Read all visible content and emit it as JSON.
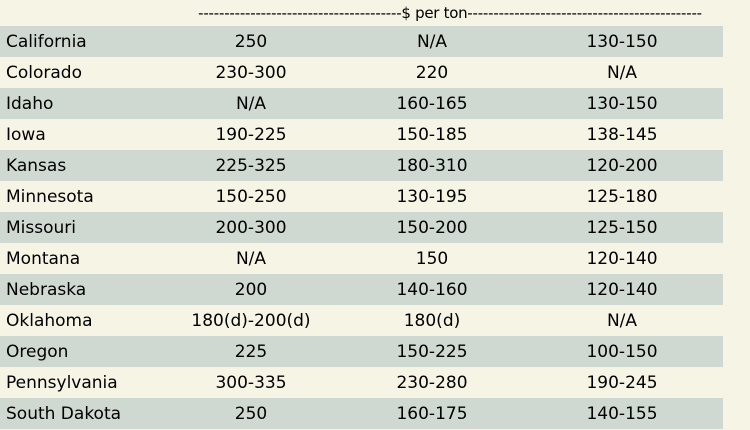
{
  "header": {
    "label": "$ per ton",
    "dashes_left": "---------------------------------------",
    "dashes_right": "---------------------------------------------"
  },
  "colors": {
    "shaded_row": "#cfd9d1",
    "plain_row": "#f6f4e4"
  },
  "rows": [
    {
      "state": "California",
      "c1": "250",
      "c2": "N/A",
      "c3": "130-150"
    },
    {
      "state": "Colorado",
      "c1": "230-300",
      "c2": "220",
      "c3": "N/A"
    },
    {
      "state": "Idaho",
      "c1": "N/A",
      "c2": "160-165",
      "c3": "130-150"
    },
    {
      "state": "Iowa",
      "c1": "190-225",
      "c2": "150-185",
      "c3": "138-145"
    },
    {
      "state": "Kansas",
      "c1": "225-325",
      "c2": "180-310",
      "c3": "120-200"
    },
    {
      "state": "Minnesota",
      "c1": "150-250",
      "c2": "130-195",
      "c3": "125-180"
    },
    {
      "state": "Missouri",
      "c1": "200-300",
      "c2": "150-200",
      "c3": "125-150"
    },
    {
      "state": "Montana",
      "c1": "N/A",
      "c2": "150",
      "c3": "120-140"
    },
    {
      "state": "Nebraska",
      "c1": "200",
      "c2": "140-160",
      "c3": "120-140"
    },
    {
      "state": "Oklahoma",
      "c1": "180(d)-200(d)",
      "c2": "180(d)",
      "c3": "N/A"
    },
    {
      "state": "Oregon",
      "c1": "225",
      "c2": "150-225",
      "c3": "100-150"
    },
    {
      "state": "Pennsylvania",
      "c1": "300-335",
      "c2": "230-280",
      "c3": "190-245"
    },
    {
      "state": "South Dakota",
      "c1": "250",
      "c2": "160-175",
      "c3": "140-155"
    }
  ]
}
